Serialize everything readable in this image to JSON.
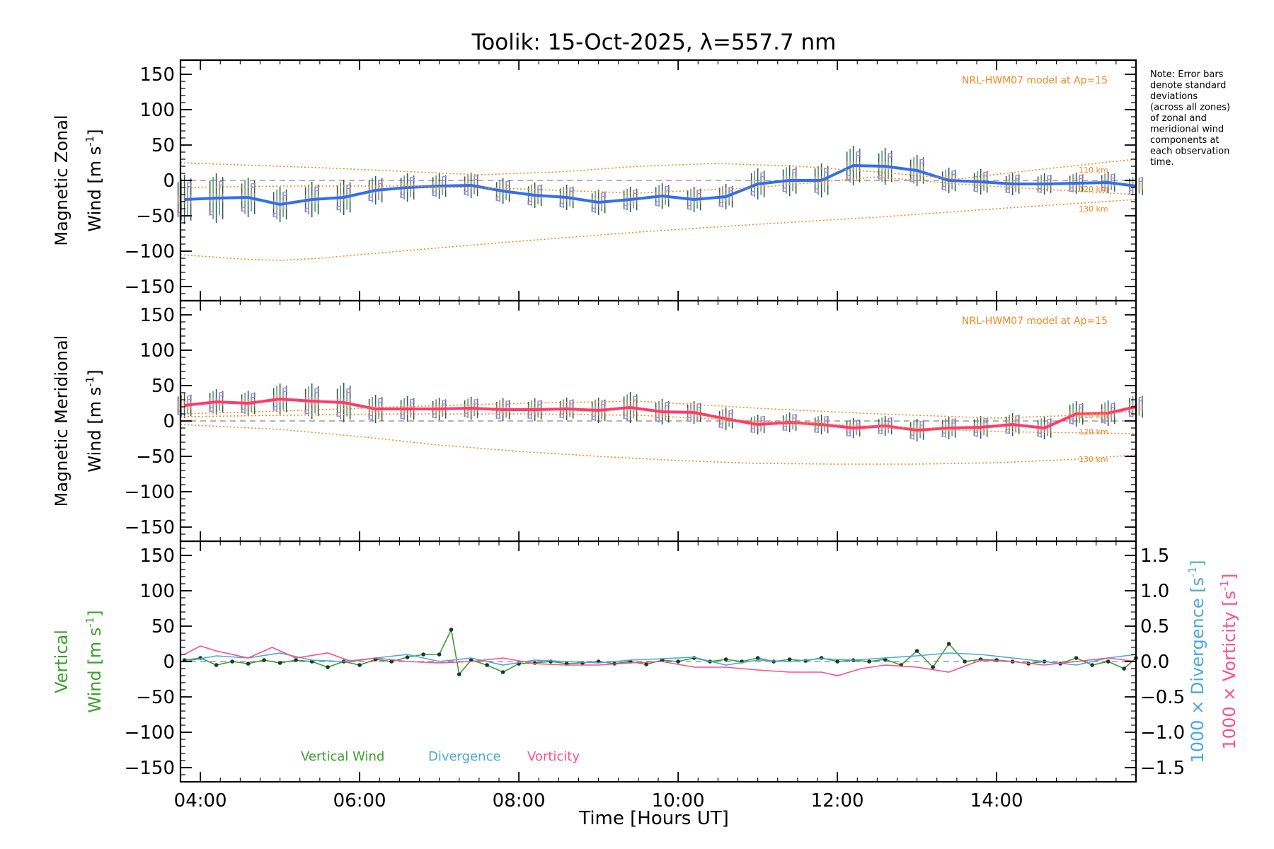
{
  "chart_data": {
    "type": "line",
    "title": "Toolik: 15-Oct-2025, λ=557.7 nm",
    "xlabel": "Time [Hours UT]",
    "x_ticks": [
      "04:00",
      "06:00",
      "08:00",
      "10:00",
      "12:00",
      "14:00"
    ],
    "x_tick_hours": [
      4,
      6,
      8,
      10,
      12,
      14
    ],
    "xlim": [
      3.75,
      15.75
    ],
    "ylim": [
      -170,
      170
    ],
    "y_ticks": [
      150,
      100,
      50,
      0,
      -50,
      -100,
      -150
    ],
    "y_tick_labels": [
      "150",
      "100",
      "50",
      "0",
      "−50",
      "−100",
      "−150"
    ],
    "note": [
      "Note: Error bars",
      "denote standard",
      "deviations",
      "(across all zones)",
      "of zonal and",
      "meridional wind",
      "components at",
      "each observation",
      "time."
    ],
    "panels": [
      {
        "name": "zonal",
        "ylabel_line1": "Magnetic Zonal",
        "ylabel_line2_prefix": "Wind [m s",
        "ylabel_line2_sup": "-1",
        "ylabel_line2_suffix": "]",
        "model_label": "NRL-HWM07 model at Ap=15",
        "altitude_labels": [
          "110 km",
          "120 km",
          "130 km"
        ],
        "series": [
          {
            "name": "Mean zonal wind",
            "color": "#2f6ff5",
            "x": [
              3.8,
              4.2,
              4.6,
              5.0,
              5.4,
              5.8,
              6.2,
              6.6,
              7.0,
              7.4,
              7.8,
              8.2,
              8.6,
              9.0,
              9.4,
              9.8,
              10.2,
              10.6,
              11.0,
              11.4,
              11.8,
              12.2,
              12.6,
              13.0,
              13.4,
              13.8,
              14.2,
              14.6,
              15.0,
              15.4,
              15.75
            ],
            "y": [
              -27,
              -25,
              -24,
              -34,
              -27,
              -24,
              -14,
              -10,
              -8,
              -7,
              -15,
              -21,
              -24,
              -31,
              -27,
              -22,
              -27,
              -23,
              -5,
              0,
              0,
              21,
              20,
              14,
              0,
              -2,
              -5,
              -5,
              -4,
              -3,
              -8
            ],
            "err": [
              35,
              35,
              28,
              25,
              25,
              25,
              20,
              20,
              18,
              18,
              18,
              18,
              18,
              18,
              18,
              18,
              18,
              18,
              22,
              22,
              24,
              28,
              26,
              22,
              18,
              18,
              16,
              15,
              15,
              15,
              15
            ]
          },
          {
            "name": "HWM07 110 km",
            "color": "#f08a22",
            "x": [
              3.75,
              4.5,
              5.0,
              5.5,
              6.5,
              7.5,
              8.5,
              9.5,
              10.5,
              11.5,
              12.5,
              13.5,
              14.5,
              15.75
            ],
            "y": [
              25,
              22,
              20,
              18,
              13,
              8,
              12,
              20,
              24,
              20,
              12,
              2,
              15,
              30
            ]
          },
          {
            "name": "HWM07 120 km",
            "color": "#f08a22",
            "x": [
              3.75,
              5.0,
              6.5,
              8.0,
              9.5,
              11.0,
              12.5,
              13.5,
              14.5,
              15.75
            ],
            "y": [
              -10,
              -8,
              -8,
              -12,
              -18,
              -10,
              5,
              -5,
              -12,
              -20
            ]
          },
          {
            "name": "HWM07 130 km",
            "color": "#f08a22",
            "x": [
              3.75,
              4.5,
              5.0,
              5.5,
              6.5,
              8.0,
              9.5,
              11.0,
              12.5,
              14.0,
              15.75
            ],
            "y": [
              -105,
              -111,
              -113,
              -110,
              -100,
              -86,
              -73,
              -62,
              -52,
              -40,
              -27
            ]
          }
        ]
      },
      {
        "name": "meridional",
        "ylabel_line1": "Magnetic Meridional",
        "ylabel_line2_prefix": "Wind [m s",
        "ylabel_line2_sup": "-1",
        "ylabel_line2_suffix": "]",
        "model_label": "NRL-HWM07 model at Ap=15",
        "altitude_labels": [
          "110 km",
          "120 km",
          "130 km"
        ],
        "series": [
          {
            "name": "Mean meridional wind",
            "color": "#ff3b6b",
            "x": [
              3.8,
              4.2,
              4.6,
              5.0,
              5.4,
              5.8,
              6.2,
              6.6,
              7.0,
              7.4,
              7.8,
              8.2,
              8.6,
              9.0,
              9.4,
              9.8,
              10.2,
              10.6,
              11.0,
              11.4,
              11.8,
              12.2,
              12.6,
              13.0,
              13.4,
              13.8,
              14.2,
              14.6,
              15.0,
              15.4,
              15.75
            ],
            "y": [
              22,
              27,
              25,
              31,
              28,
              26,
              17,
              17,
              17,
              18,
              16,
              16,
              17,
              15,
              19,
              13,
              12,
              3,
              -5,
              -2,
              -5,
              -10,
              -7,
              -13,
              -10,
              -9,
              -5,
              -10,
              10,
              11,
              20
            ],
            "err": [
              18,
              18,
              18,
              22,
              25,
              28,
              20,
              18,
              16,
              16,
              16,
              16,
              16,
              18,
              22,
              18,
              16,
              16,
              14,
              14,
              14,
              14,
              14,
              16,
              16,
              16,
              16,
              16,
              18,
              18,
              18
            ]
          },
          {
            "name": "HWM07 110 km",
            "color": "#f08a22",
            "x": [
              3.75,
              5.0,
              6.5,
              8.0,
              9.5,
              11.0,
              12.5,
              14.0,
              15.0,
              15.75
            ],
            "y": [
              10,
              14,
              20,
              25,
              28,
              18,
              10,
              4,
              8,
              14
            ]
          },
          {
            "name": "HWM07 120 km",
            "color": "#f08a22",
            "x": [
              3.75,
              5.0,
              6.5,
              8.0,
              9.5,
              11.0,
              12.5,
              14.0,
              15.75
            ],
            "y": [
              6,
              8,
              10,
              10,
              8,
              0,
              -8,
              -15,
              -18
            ]
          },
          {
            "name": "HWM07 130 km",
            "color": "#f08a22",
            "x": [
              3.75,
              5.0,
              6.0,
              7.0,
              8.0,
              9.0,
              10.0,
              11.0,
              12.0,
              13.0,
              14.0,
              15.0,
              15.75
            ],
            "y": [
              -5,
              -12,
              -22,
              -34,
              -43,
              -50,
              -56,
              -60,
              -61,
              -61,
              -59,
              -54,
              -48
            ]
          }
        ]
      },
      {
        "name": "vertical",
        "ylabel_line1": "Vertical",
        "ylabel_line2_prefix": "Wind [m s",
        "ylabel_line2_sup": "-1",
        "ylabel_line2_suffix": "]",
        "right_axis": {
          "ylim": [
            -1.7,
            1.7
          ],
          "ticks": [
            1.5,
            1.0,
            0.5,
            0.0,
            -0.5,
            -1.0,
            -1.5
          ],
          "tick_labels": [
            "1.5",
            "1.0",
            "0.5",
            "0.0",
            "−0.5",
            "−1.0",
            "−1.5"
          ],
          "label_divergence": "1000 × Divergence [s",
          "label_vorticity": "1000 × Vorticity [s",
          "label_sup": "-1",
          "label_suffix": "]"
        },
        "legend": [
          "Vertical Wind",
          "Divergence",
          "Vorticity"
        ],
        "series": [
          {
            "name": "Vertical Wind",
            "color": "#3aa12a",
            "axis": "left",
            "x": [
              3.8,
              4.0,
              4.2,
              4.4,
              4.6,
              4.8,
              5.0,
              5.2,
              5.4,
              5.6,
              5.8,
              6.0,
              6.2,
              6.4,
              6.6,
              6.8,
              7.0,
              7.15,
              7.25,
              7.4,
              7.6,
              7.8,
              8.0,
              8.2,
              8.4,
              8.6,
              8.8,
              9.0,
              9.2,
              9.4,
              9.6,
              9.8,
              10.0,
              10.2,
              10.4,
              10.6,
              10.8,
              11.0,
              11.2,
              11.4,
              11.6,
              11.8,
              12.0,
              12.2,
              12.4,
              12.6,
              12.8,
              13.0,
              13.2,
              13.4,
              13.6,
              13.8,
              14.0,
              14.2,
              14.4,
              14.6,
              14.8,
              15.0,
              15.2,
              15.4,
              15.6,
              15.75
            ],
            "y": [
              2,
              5,
              -5,
              0,
              -3,
              2,
              -2,
              2,
              0,
              -8,
              0,
              -5,
              3,
              0,
              6,
              10,
              10,
              45,
              -18,
              2,
              -5,
              -15,
              -3,
              -2,
              0,
              -3,
              -2,
              0,
              -3,
              0,
              -4,
              2,
              0,
              5,
              0,
              3,
              0,
              5,
              0,
              3,
              1,
              5,
              0,
              2,
              0,
              3,
              -5,
              15,
              -8,
              25,
              0,
              3,
              2,
              0,
              -3,
              0,
              -3,
              5,
              -5,
              0,
              -10,
              5
            ]
          },
          {
            "name": "Divergence",
            "color": "#4aa8d8",
            "axis": "right",
            "x": [
              3.8,
              4.2,
              4.6,
              5.0,
              5.4,
              5.8,
              6.2,
              6.6,
              7.0,
              7.4,
              7.8,
              8.2,
              8.6,
              9.0,
              9.4,
              9.8,
              10.2,
              10.6,
              11.0,
              11.4,
              11.8,
              12.2,
              12.6,
              13.0,
              13.4,
              13.8,
              14.2,
              14.6,
              15.0,
              15.4,
              15.75
            ],
            "y": [
              0.0,
              0.08,
              0.05,
              0.12,
              0.02,
              0.0,
              0.05,
              0.1,
              0.0,
              0.05,
              -0.05,
              0.02,
              0.0,
              -0.02,
              0.02,
              0.04,
              0.06,
              -0.05,
              0.02,
              0.0,
              0.04,
              0.02,
              0.05,
              0.08,
              0.12,
              0.1,
              0.05,
              0.0,
              -0.05,
              0.05,
              0.1
            ]
          },
          {
            "name": "Vorticity",
            "color": "#ff4d8d",
            "axis": "right",
            "x": [
              3.8,
              4.0,
              4.2,
              4.6,
              4.9,
              5.2,
              5.6,
              5.9,
              6.2,
              6.6,
              7.0,
              7.4,
              7.8,
              8.2,
              8.6,
              9.0,
              9.4,
              9.8,
              10.2,
              10.6,
              11.0,
              11.4,
              11.8,
              12.0,
              12.3,
              12.6,
              13.0,
              13.4,
              13.8,
              14.2,
              14.6,
              15.0,
              15.4,
              15.75
            ],
            "y": [
              0.1,
              0.22,
              0.15,
              0.05,
              0.2,
              0.05,
              0.12,
              0.0,
              0.05,
              0.0,
              -0.02,
              0.0,
              0.05,
              -0.03,
              -0.05,
              -0.05,
              -0.02,
              0.0,
              -0.08,
              -0.08,
              -0.12,
              -0.15,
              -0.15,
              -0.2,
              -0.1,
              -0.05,
              -0.08,
              -0.15,
              0.02,
              0.0,
              -0.05,
              0.0,
              0.05,
              0.0
            ]
          }
        ]
      }
    ]
  }
}
